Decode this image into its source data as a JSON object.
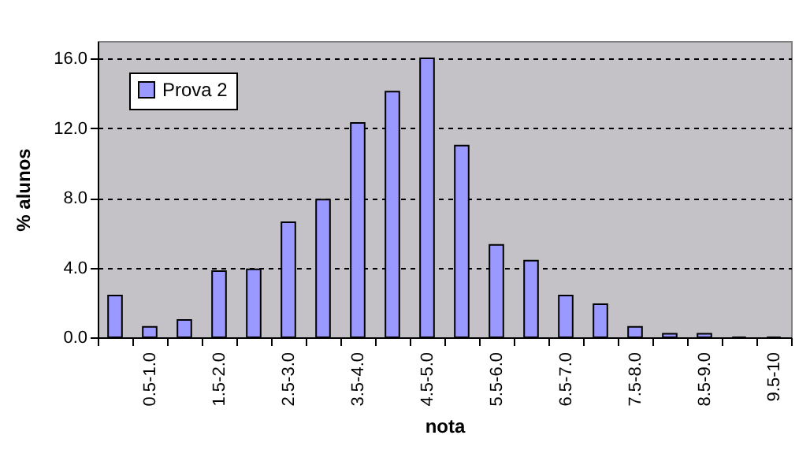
{
  "chart_data": {
    "type": "bar",
    "xlabel": "nota",
    "ylabel": "% alunos",
    "categories": [
      null,
      "0.5-1.0",
      null,
      "1.5-2.0",
      null,
      "2.5-3.0",
      null,
      "3.5-4.0",
      null,
      "4.5-5.0",
      null,
      "5.5-6.0",
      null,
      "6.5-7.0",
      null,
      "7.5-8.0",
      null,
      "8.5-9.0",
      null,
      "9.5-10"
    ],
    "series": [
      {
        "name": "Prova 2",
        "color": "#9999ff",
        "values": [
          2.4,
          0.6,
          1.0,
          3.8,
          3.9,
          6.6,
          7.9,
          12.3,
          14.1,
          16.0,
          11.0,
          5.3,
          4.4,
          2.4,
          1.9,
          0.6,
          0.2,
          0.2,
          0,
          0
        ]
      }
    ],
    "ylim": [
      0,
      17
    ],
    "yticks": [
      {
        "value": 0,
        "label": "0.0"
      },
      {
        "value": 4,
        "label": "4.0"
      },
      {
        "value": 8,
        "label": "8.0"
      },
      {
        "value": 12,
        "label": "12.0"
      },
      {
        "value": 16,
        "label": "16.0"
      }
    ],
    "grid": "y",
    "legend": "top left"
  }
}
